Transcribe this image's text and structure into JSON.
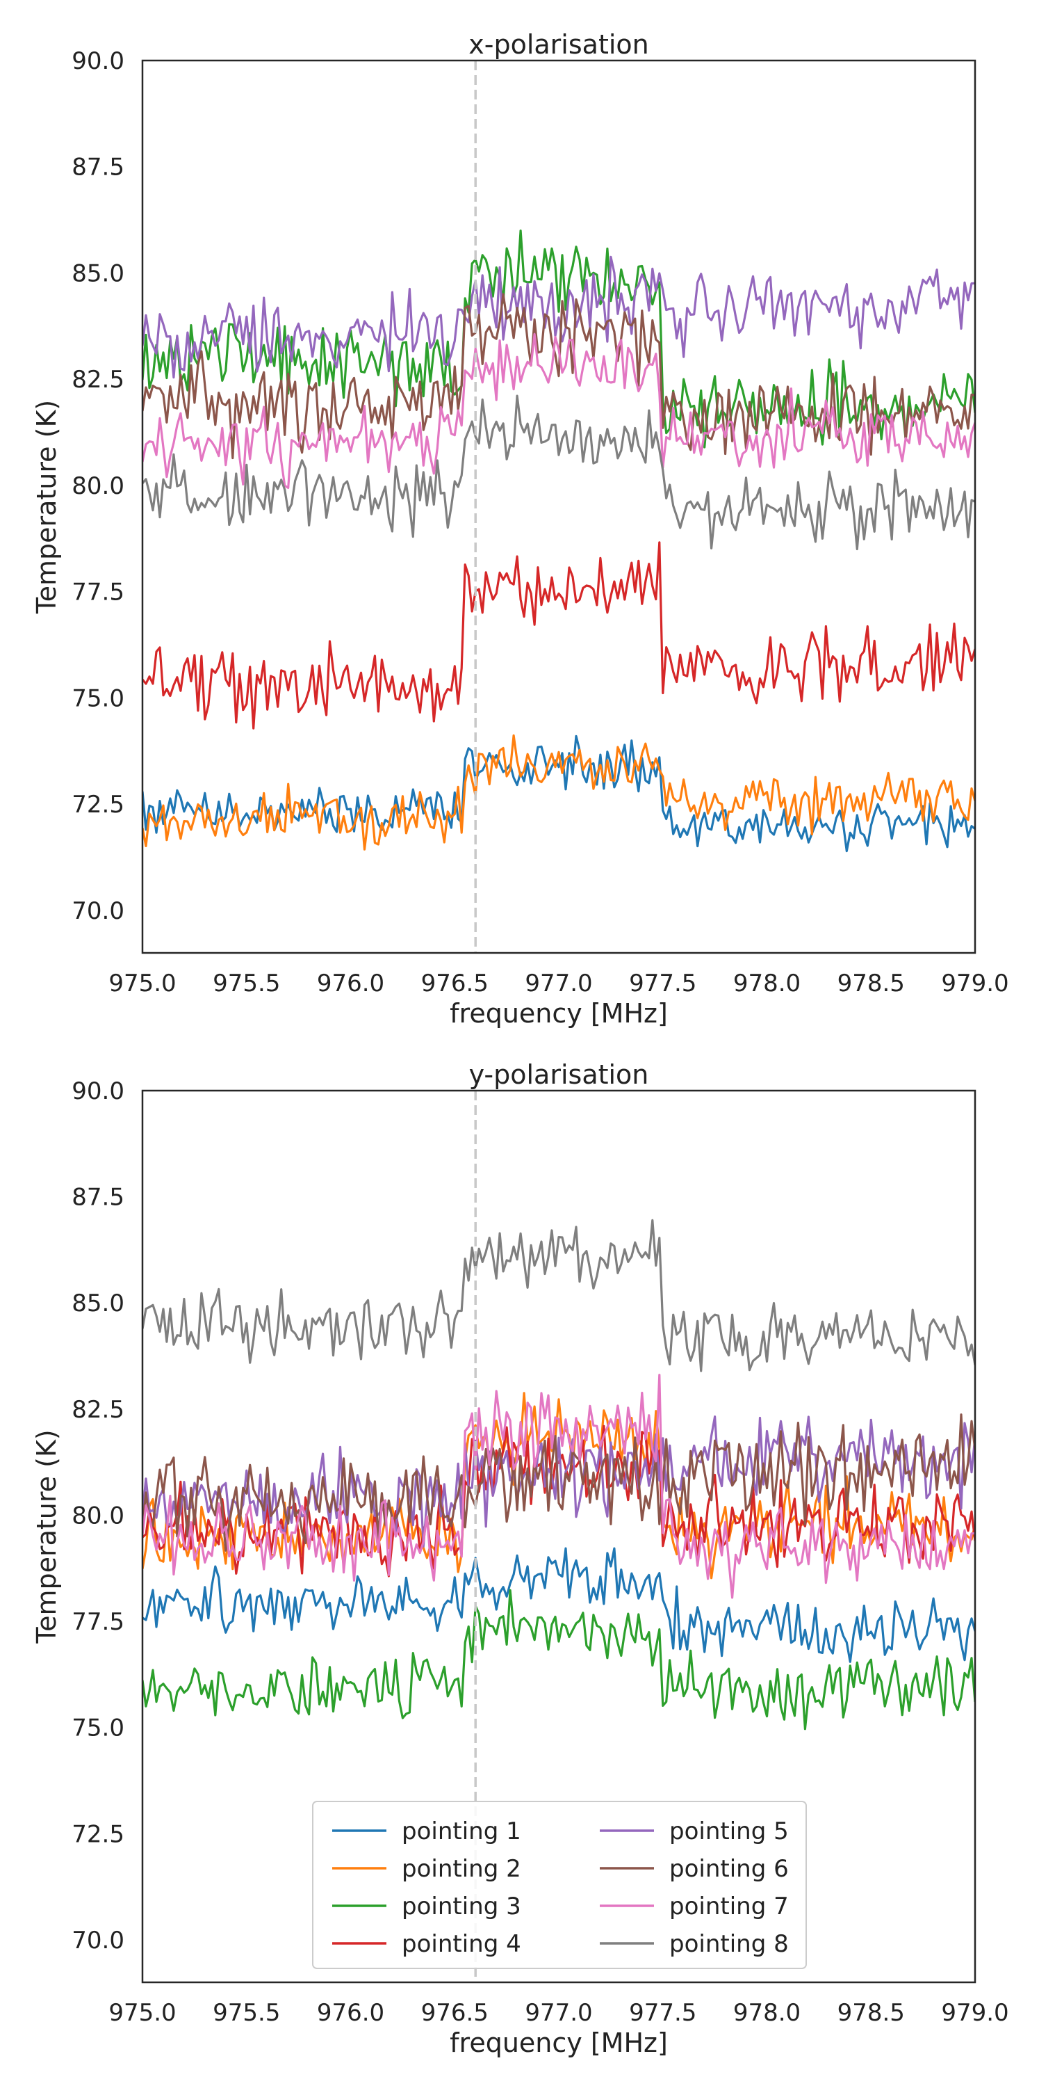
{
  "chart_data": [
    {
      "type": "line",
      "title": "x-polarisation",
      "xlabel": "frequency [MHz]",
      "ylabel": "Temperature (K)",
      "xlim": [
        975.0,
        979.0
      ],
      "ylim": [
        69.0,
        90.0
      ],
      "xticks": [
        "975.0",
        "975.5",
        "976.0",
        "976.5",
        "977.0",
        "977.5",
        "978.0",
        "978.5",
        "979.0"
      ],
      "yticks": [
        "70.0",
        "72.5",
        "75.0",
        "77.5",
        "80.0",
        "82.5",
        "85.0",
        "87.5",
        "90.0"
      ],
      "vline": 976.6,
      "grid": false,
      "series": [
        {
          "name": "pointing 1",
          "color": "#1f77b4",
          "base": 72.3,
          "step": 1.1,
          "slope": 0.0,
          "post": -0.3,
          "noise": 0.35,
          "seed": 11
        },
        {
          "name": "pointing 2",
          "color": "#ff7f0e",
          "base": 72.2,
          "step": 1.2,
          "slope": 0.15,
          "post": 0.3,
          "noise": 0.4,
          "seed": 12
        },
        {
          "name": "pointing 3",
          "color": "#2ca02c",
          "base": 83.0,
          "step": 2.0,
          "slope": -0.2,
          "post": -1.0,
          "noise": 0.6,
          "seed": 13
        },
        {
          "name": "pointing 4",
          "color": "#d62728",
          "base": 75.3,
          "step": 2.3,
          "slope": 0.1,
          "post": 0.4,
          "noise": 0.5,
          "seed": 14
        },
        {
          "name": "pointing 5",
          "color": "#9467bd",
          "base": 83.4,
          "step": 0.6,
          "slope": 0.75,
          "post": 0.2,
          "noise": 0.55,
          "seed": 15
        },
        {
          "name": "pointing 6",
          "color": "#8c564b",
          "base": 82.0,
          "step": 1.6,
          "slope": -0.05,
          "post": -0.3,
          "noise": 0.6,
          "seed": 16
        },
        {
          "name": "pointing 7",
          "color": "#e377c2",
          "base": 81.0,
          "step": 1.7,
          "slope": 0.1,
          "post": 0.1,
          "noise": 0.5,
          "seed": 17
        },
        {
          "name": "pointing 8",
          "color": "#7f7f7f",
          "base": 79.8,
          "step": 1.3,
          "slope": 0.05,
          "post": -0.4,
          "noise": 0.5,
          "seed": 18
        }
      ]
    },
    {
      "type": "line",
      "title": "y-polarisation",
      "xlabel": "frequency [MHz]",
      "ylabel": "Temperature (K)",
      "xlim": [
        975.0,
        979.0
      ],
      "ylim": [
        69.0,
        90.0
      ],
      "xticks": [
        "975.0",
        "975.5",
        "976.0",
        "976.5",
        "977.0",
        "977.5",
        "978.0",
        "978.5",
        "979.0"
      ],
      "yticks": [
        "70.0",
        "72.5",
        "75.0",
        "77.5",
        "80.0",
        "82.5",
        "85.0",
        "87.5",
        "90.0"
      ],
      "vline": 976.6,
      "grid": false,
      "legend": {
        "location": "lower center",
        "columns": 2
      },
      "series": [
        {
          "name": "pointing 1",
          "color": "#1f77b4",
          "base": 78.0,
          "step": 0.5,
          "slope": -0.2,
          "post": -0.5,
          "noise": 0.45,
          "seed": 21
        },
        {
          "name": "pointing 2",
          "color": "#ff7f0e",
          "base": 79.5,
          "step": 2.2,
          "slope": 0.2,
          "post": 0.1,
          "noise": 0.55,
          "seed": 22
        },
        {
          "name": "pointing 3",
          "color": "#2ca02c",
          "base": 76.0,
          "step": 1.3,
          "slope": -0.05,
          "post": 0.0,
          "noise": 0.45,
          "seed": 23
        },
        {
          "name": "pointing 4",
          "color": "#d62728",
          "base": 79.6,
          "step": 1.5,
          "slope": 0.1,
          "post": 0.1,
          "noise": 0.55,
          "seed": 24
        },
        {
          "name": "pointing 5",
          "color": "#9467bd",
          "base": 80.3,
          "step": 0.5,
          "slope": 0.4,
          "post": 0.6,
          "noise": 0.6,
          "seed": 25
        },
        {
          "name": "pointing 6",
          "color": "#8c564b",
          "base": 80.3,
          "step": 0.4,
          "slope": 0.3,
          "post": 0.5,
          "noise": 0.65,
          "seed": 26
        },
        {
          "name": "pointing 7",
          "color": "#e377c2",
          "base": 79.4,
          "step": 2.6,
          "slope": 0.1,
          "post": -0.2,
          "noise": 0.6,
          "seed": 27
        },
        {
          "name": "pointing 8",
          "color": "#7f7f7f",
          "base": 84.5,
          "step": 1.6,
          "slope": -0.05,
          "post": -0.3,
          "noise": 0.45,
          "seed": 28
        }
      ]
    }
  ]
}
